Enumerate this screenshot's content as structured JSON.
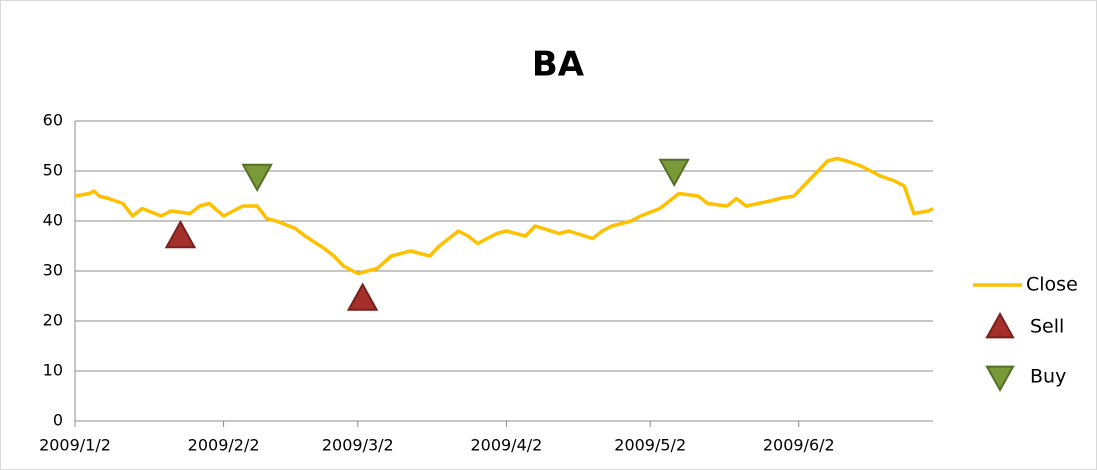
{
  "chart_data": {
    "type": "line",
    "title": "BA",
    "xlim": [
      "2009/1/2",
      "2009/6/30"
    ],
    "xticks": [
      "2009/1/2",
      "2009/2/2",
      "2009/3/2",
      "2009/4/2",
      "2009/5/2",
      "2009/6/2"
    ],
    "ylim": [
      0,
      60
    ],
    "yticks": [
      0,
      10,
      20,
      30,
      40,
      50,
      60
    ],
    "grid": true,
    "legend": "right",
    "series": [
      {
        "name": "Close",
        "color": "#ffc000",
        "marker": "line",
        "x": [
          "2009/1/2",
          "2009/1/5",
          "2009/1/6",
          "2009/1/7",
          "2009/1/9",
          "2009/1/12",
          "2009/1/14",
          "2009/1/16",
          "2009/1/20",
          "2009/1/22",
          "2009/1/26",
          "2009/1/28",
          "2009/1/30",
          "2009/2/2",
          "2009/2/4",
          "2009/2/6",
          "2009/2/9",
          "2009/2/11",
          "2009/2/13",
          "2009/2/17",
          "2009/2/19",
          "2009/2/23",
          "2009/2/25",
          "2009/2/27",
          "2009/3/2",
          "2009/3/4",
          "2009/3/6",
          "2009/3/9",
          "2009/3/11",
          "2009/3/13",
          "2009/3/17",
          "2009/3/19",
          "2009/3/23",
          "2009/3/25",
          "2009/3/27",
          "2009/3/31",
          "2009/4/2",
          "2009/4/6",
          "2009/4/8",
          "2009/4/13",
          "2009/4/15",
          "2009/4/20",
          "2009/4/22",
          "2009/4/24",
          "2009/4/28",
          "2009/4/30",
          "2009/5/4",
          "2009/5/6",
          "2009/5/8",
          "2009/5/12",
          "2009/5/14",
          "2009/5/18",
          "2009/5/20",
          "2009/5/22",
          "2009/5/27",
          "2009/5/29",
          "2009/6/1",
          "2009/6/3",
          "2009/6/5",
          "2009/6/8",
          "2009/6/10",
          "2009/6/12",
          "2009/6/15",
          "2009/6/17",
          "2009/6/19",
          "2009/6/22",
          "2009/6/24",
          "2009/6/26",
          "2009/6/29",
          "2009/6/30"
        ],
        "values": [
          45,
          45.5,
          46,
          45,
          44.5,
          43.5,
          41,
          42.5,
          41,
          42,
          41.5,
          43,
          43.5,
          41,
          42,
          43,
          43,
          40.5,
          40,
          38.5,
          37,
          34.5,
          33,
          31,
          29.5,
          30,
          30.5,
          33,
          33.5,
          34,
          33,
          35,
          38,
          37,
          35.5,
          37.5,
          38,
          37,
          39,
          37.5,
          38,
          36.5,
          38,
          39,
          40,
          41,
          42.5,
          44,
          45.5,
          45,
          43.5,
          43,
          44.5,
          43,
          44,
          44.5,
          45,
          47,
          49,
          52,
          52.5,
          52,
          51,
          50,
          49,
          48,
          47,
          41.5,
          42,
          42.5
        ]
      },
      {
        "name": "Sell",
        "color": "#a5302b",
        "marker": "triangle-up",
        "x": [
          "2009/1/24",
          "2009/3/3"
        ],
        "values": [
          37,
          24.5
        ]
      },
      {
        "name": "Buy",
        "color": "#7a9a3a",
        "marker": "triangle-down",
        "x": [
          "2009/2/9",
          "2009/5/7"
        ],
        "values": [
          49,
          50
        ]
      }
    ]
  }
}
